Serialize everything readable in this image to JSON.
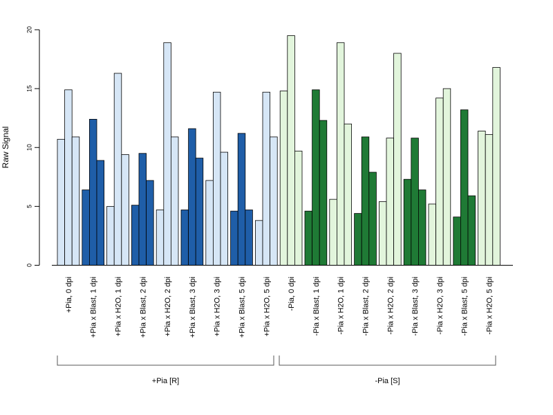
{
  "chart_data": {
    "type": "bar",
    "ylabel": "Raw Signal",
    "ylim": [
      0,
      20
    ],
    "yticks": [
      0,
      5,
      10,
      15,
      20
    ],
    "grid": false,
    "colors": {
      "plus_light": "#d6e6f6",
      "plus_dark": "#1f5ea8",
      "minus_light": "#e2f5dc",
      "minus_dark": "#1f7a35",
      "border": "#000000"
    },
    "groups": [
      {
        "label": "+Pia [R]",
        "categories": [
          {
            "label": "+Pia, 0 dpi",
            "color": "plus_light",
            "values": [
              10.7,
              14.9,
              10.9
            ]
          },
          {
            "label": "+Pia x Blast, 1 dpi",
            "color": "plus_dark",
            "values": [
              6.4,
              12.4,
              8.9
            ]
          },
          {
            "label": "+Pia x H2O, 1 dpi",
            "color": "plus_light",
            "values": [
              5.0,
              16.3,
              9.4
            ]
          },
          {
            "label": "+Pia x Blast, 2 dpi",
            "color": "plus_dark",
            "values": [
              5.1,
              9.5,
              7.2
            ]
          },
          {
            "label": "+Pia x H2O, 2 dpi",
            "color": "plus_light",
            "values": [
              4.7,
              18.9,
              10.9
            ]
          },
          {
            "label": "+Pia x Blast, 3 dpi",
            "color": "plus_dark",
            "values": [
              4.7,
              11.6,
              9.1
            ]
          },
          {
            "label": "+Pia x H2O, 3 dpi",
            "color": "plus_light",
            "values": [
              7.2,
              14.7,
              9.6
            ]
          },
          {
            "label": "+Pia x Blast, 5 dpi",
            "color": "plus_dark",
            "values": [
              4.6,
              11.2,
              4.7
            ]
          },
          {
            "label": "+Pia x H2O, 5 dpi",
            "color": "plus_light",
            "values": [
              3.8,
              14.7,
              10.9
            ]
          }
        ]
      },
      {
        "label": "-Pia [S]",
        "categories": [
          {
            "label": "-Pia, 0 dpi",
            "color": "minus_light",
            "values": [
              14.8,
              19.5,
              9.7
            ]
          },
          {
            "label": "-Pia x Blast, 1 dpi",
            "color": "minus_dark",
            "values": [
              4.6,
              14.9,
              12.3
            ]
          },
          {
            "label": "-Pia x H2O, 1 dpi",
            "color": "minus_light",
            "values": [
              5.6,
              18.9,
              12.0
            ]
          },
          {
            "label": "-Pia x Blast, 2 dpi",
            "color": "minus_dark",
            "values": [
              4.4,
              10.9,
              7.9
            ]
          },
          {
            "label": "-Pia x H2O, 2 dpi",
            "color": "minus_light",
            "values": [
              5.4,
              10.8,
              18.0
            ]
          },
          {
            "label": "-Pia x Blast, 3 dpi",
            "color": "minus_dark",
            "values": [
              7.3,
              10.8,
              6.4
            ]
          },
          {
            "label": "-Pia x H2O, 3 dpi",
            "color": "minus_light",
            "values": [
              5.2,
              14.2,
              15.0
            ]
          },
          {
            "label": "-Pia x Blast, 5 dpi",
            "color": "minus_dark",
            "values": [
              4.1,
              13.2,
              5.9
            ]
          },
          {
            "label": "-Pia x H2O, 5 dpi",
            "color": "minus_light",
            "values": [
              11.4,
              11.1,
              16.8
            ]
          }
        ]
      }
    ]
  }
}
